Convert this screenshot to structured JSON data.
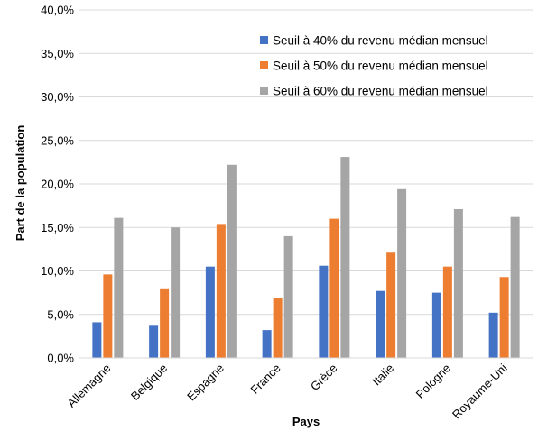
{
  "chart_data": {
    "type": "bar",
    "xlabel": "Pays",
    "ylabel": "Part de la population",
    "ylim": [
      0,
      40
    ],
    "y_ticks": [
      0,
      5,
      10,
      15,
      20,
      25,
      30,
      35,
      40
    ],
    "y_tick_labels": [
      "0,0%",
      "5,0%",
      "10,0%",
      "15,0%",
      "20,0%",
      "25,0%",
      "30,0%",
      "35,0%",
      "40,0%"
    ],
    "categories": [
      "Allemagne",
      "Belgique",
      "Espagne",
      "France",
      "Grèce",
      "Italie",
      "Pologne",
      "Royaume-Uni"
    ],
    "series": [
      {
        "name": "Seuil à 40% du revenu médian mensuel",
        "color": "#4472C4",
        "values": [
          4.1,
          3.7,
          10.5,
          3.2,
          10.6,
          7.7,
          7.5,
          5.2
        ]
      },
      {
        "name": "Seuil à 50% du revenu médian mensuel",
        "color": "#ED7D31",
        "values": [
          9.6,
          8.0,
          15.4,
          6.9,
          16.0,
          12.1,
          10.5,
          9.3
        ]
      },
      {
        "name": "Seuil à 60% du revenu médian mensuel",
        "color": "#A5A5A5",
        "values": [
          16.1,
          15.0,
          22.2,
          14.0,
          23.1,
          19.4,
          17.1,
          16.2
        ]
      }
    ],
    "grid": true,
    "legend_position": "top-right",
    "gridline_color": "#D9D9D9"
  }
}
